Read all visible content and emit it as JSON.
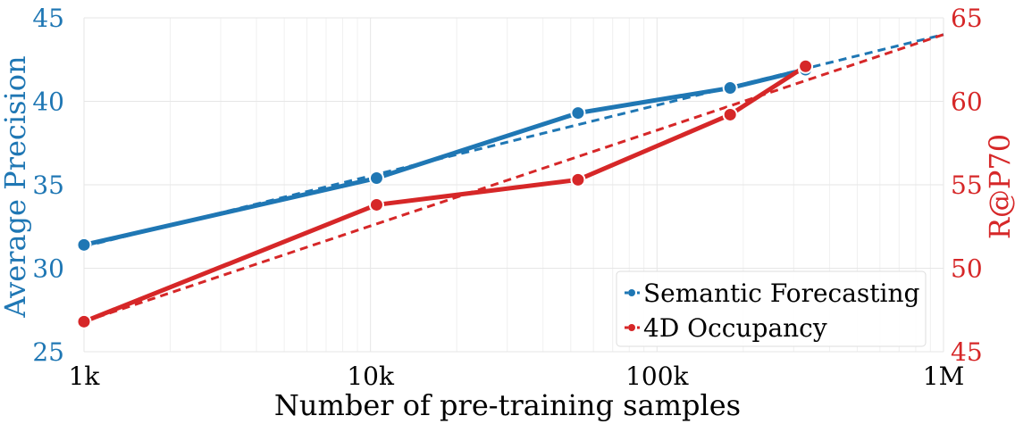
{
  "chart_data": {
    "type": "line",
    "title": "",
    "xlabel": "Number of pre-training samples",
    "xscale": "log",
    "xlim": [
      1000,
      1000000
    ],
    "x_ticks": [
      1000,
      10000,
      100000,
      1000000
    ],
    "x_tick_labels": [
      "1k",
      "10k",
      "100k",
      "1M"
    ],
    "ylabel_left": "Average Precision",
    "ylim_left": [
      25,
      45
    ],
    "y_ticks_left": [
      25,
      30,
      35,
      40,
      45
    ],
    "ylabel_right": "R@P70",
    "ylim_right": [
      45,
      65
    ],
    "y_ticks_right": [
      45,
      50,
      55,
      60,
      65
    ],
    "series": [
      {
        "name": "Semantic Forecasting",
        "axis": "left",
        "color": "#1f77b4",
        "x": [
          1000,
          10500,
          53000,
          180000,
          330000
        ],
        "values": [
          31.4,
          35.4,
          39.3,
          40.8,
          41.9
        ],
        "trend": {
          "x": [
            1000,
            1000000
          ],
          "values": [
            31.3,
            44.0
          ]
        }
      },
      {
        "name": "4D Occupancy",
        "axis": "right",
        "color": "#d62728",
        "x": [
          1000,
          10500,
          53000,
          180000,
          330000
        ],
        "values": [
          46.8,
          53.8,
          55.3,
          59.2,
          62.1
        ],
        "trend": {
          "x": [
            1000,
            1000000
          ],
          "values": [
            46.8,
            64.0
          ]
        }
      }
    ],
    "legend": {
      "position": "bottom-right",
      "entries": [
        "Semantic Forecasting",
        "4D Occupancy"
      ]
    },
    "grid": true
  }
}
